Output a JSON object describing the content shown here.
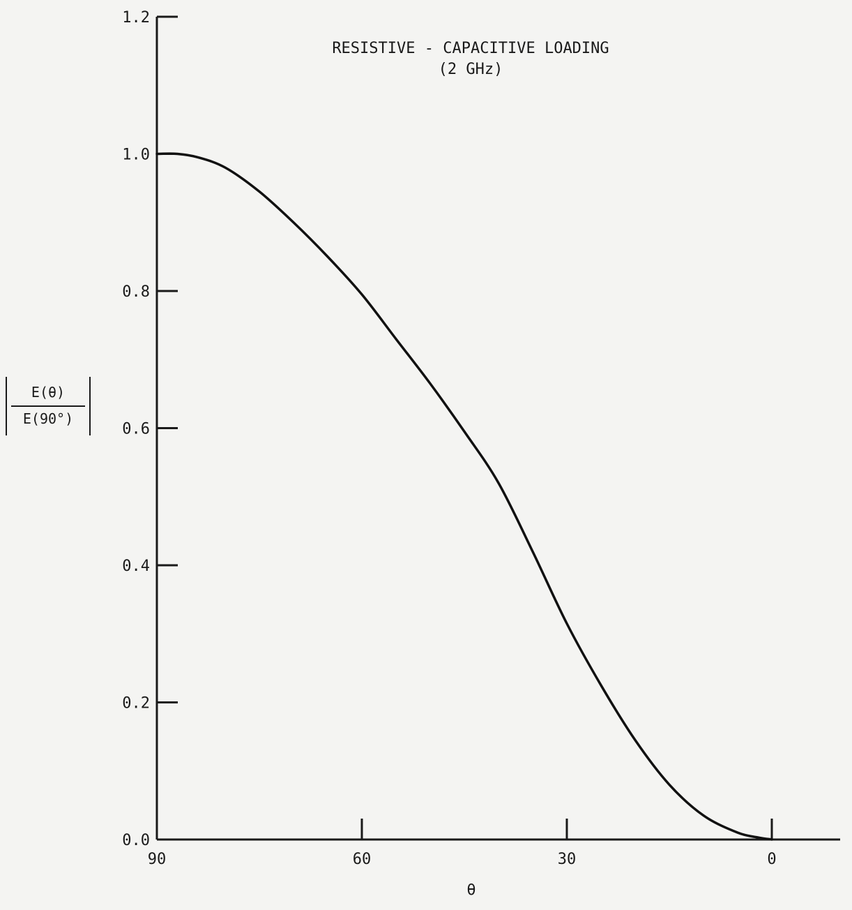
{
  "chart_data": {
    "type": "line",
    "title": "RESISTIVE - CAPACITIVE LOADING",
    "subtitle": "(2 GHz)",
    "xlabel": "θ",
    "ylabel": {
      "numerator": "E(θ)",
      "denominator": "E(90°)"
    },
    "xlim": [
      90,
      -10
    ],
    "ylim": [
      0,
      1.2
    ],
    "x_ticks": [
      90,
      60,
      30,
      0
    ],
    "x_tick_labels": [
      "90",
      "60",
      "30",
      "0"
    ],
    "y_ticks": [
      0,
      0.2,
      0.4,
      0.6,
      0.8,
      1.0,
      1.2
    ],
    "y_tick_labels": [
      "0.0",
      "0.2",
      "0.4",
      "0.6",
      "0.8",
      "1.0",
      "1.2"
    ],
    "grid": false,
    "series": [
      {
        "x": [
          90,
          87,
          84,
          80,
          75,
          70,
          65,
          60,
          55,
          50,
          45,
          40,
          35,
          30,
          25,
          20,
          15,
          10,
          5,
          2,
          0
        ],
        "y": [
          1.0,
          1.0,
          0.995,
          0.98,
          0.945,
          0.9,
          0.85,
          0.795,
          0.73,
          0.665,
          0.595,
          0.52,
          0.42,
          0.315,
          0.225,
          0.145,
          0.08,
          0.035,
          0.01,
          0.003,
          0.0
        ]
      }
    ],
    "line_color": "#111111"
  }
}
